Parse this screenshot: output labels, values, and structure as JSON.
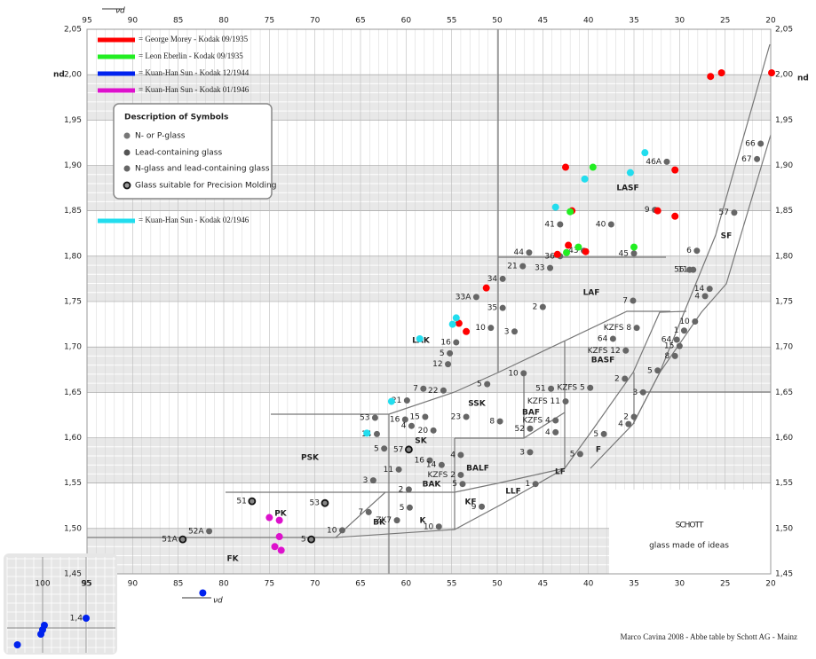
{
  "chart_data": {
    "type": "scatter",
    "x_label": "νd",
    "y_label": "nd",
    "xlim": [
      95,
      20
    ],
    "ylim": [
      1.45,
      2.05
    ],
    "xticks": [
      95,
      90,
      85,
      80,
      75,
      70,
      65,
      60,
      55,
      50,
      45,
      40,
      35,
      30,
      25,
      20
    ],
    "yticks": [
      {
        "value": 1.45,
        "label": "1,45"
      },
      {
        "value": 1.5,
        "label": "1,50"
      },
      {
        "value": 1.55,
        "label": "1,55"
      },
      {
        "value": 1.6,
        "label": "1,60"
      },
      {
        "value": 1.65,
        "label": "1,65"
      },
      {
        "value": 1.7,
        "label": "1,70"
      },
      {
        "value": 1.75,
        "label": "1,75"
      },
      {
        "value": 1.8,
        "label": "1,80"
      },
      {
        "value": 1.85,
        "label": "1,85"
      },
      {
        "value": 1.9,
        "label": "1,90"
      },
      {
        "value": 1.95,
        "label": "1,95"
      },
      {
        "value": 2.0,
        "label": "2,00"
      },
      {
        "value": 2.05,
        "label": "2,05"
      }
    ],
    "grid": true,
    "series": [
      {
        "name": "= George Morey - Kodak 09/1935",
        "color": "#ff0000",
        "x": [
          26.6,
          25.4,
          19.9,
          30.5,
          32.4,
          30.5,
          42.5,
          41.8,
          42.2,
          43.4,
          40.3,
          51.2,
          54.2,
          53.4
        ],
        "values": [
          1.998,
          2.002,
          2.002,
          1.895,
          1.85,
          1.844,
          1.898,
          1.85,
          1.812,
          1.802,
          1.805,
          1.765,
          1.726,
          1.717
        ]
      },
      {
        "name": "= Leon Eberlin - Kodak 09/1935",
        "color": "#22ee22",
        "x": [
          39.5,
          42.0,
          41.1,
          35.0,
          42.4
        ],
        "values": [
          1.898,
          1.849,
          1.81,
          1.81,
          1.804
        ]
      },
      {
        "name": "= Kuan-Han Sun - Kodak 12/1944",
        "color": "#0022ee",
        "x": [
          82.3
        ],
        "values": [
          1.429
        ]
      },
      {
        "name": "= Kuan-Han Sun - Kodak 01/1946",
        "color": "#dd11cc",
        "x": [
          75.0,
          73.9,
          73.9,
          74.4,
          73.7
        ],
        "values": [
          1.512,
          1.509,
          1.491,
          1.48,
          1.476
        ]
      },
      {
        "name": "= Kuan-Han Sun - Kodak 02/1946",
        "color": "#22ddee",
        "x": [
          33.8,
          35.4,
          40.4,
          43.6,
          54.5,
          54.9,
          58.5,
          61.6,
          64.3
        ],
        "values": [
          1.914,
          1.892,
          1.885,
          1.854,
          1.732,
          1.725,
          1.709,
          1.64,
          1.605
        ]
      }
    ],
    "glasses": {
      "color": "#666666",
      "labels": [
        "66",
        "67",
        "46A",
        "41",
        "40",
        "9",
        "57",
        "44",
        "36",
        "43",
        "45",
        "6",
        "21",
        "33",
        "56",
        "11",
        "34",
        "33A",
        "35",
        "2",
        "7",
        "14",
        "4",
        "10",
        "3",
        "10",
        "1",
        "KZFS 8",
        "64",
        "64",
        "15",
        "KZFS 12",
        "8",
        "5",
        "16",
        "5",
        "12",
        "10",
        "2",
        "3",
        "7",
        "22",
        "5",
        "51",
        "KZFS 5",
        "21",
        "KZFS 11",
        "53",
        "16",
        "15",
        "23",
        "8",
        "KZFS 4",
        "2",
        "4",
        "4",
        "20",
        "52",
        "4",
        "14",
        "5",
        "5",
        "3",
        "11",
        "16",
        "14",
        "4",
        "5",
        "KZFS 2",
        "5",
        "3",
        "2",
        "1",
        "9",
        "7",
        "5",
        "ZK7",
        "10",
        "10",
        "52A"
      ],
      "x": [
        21.1,
        21.5,
        31.4,
        43.1,
        37.5,
        32.7,
        24.0,
        46.5,
        43.1,
        40.5,
        35.0,
        28.1,
        47.2,
        44.2,
        28.9,
        28.5,
        49.4,
        52.3,
        49.4,
        45.0,
        35.1,
        26.7,
        27.2,
        50.7,
        48.1,
        28.3,
        29.5,
        34.7,
        37.3,
        30.3,
        30.0,
        35.9,
        30.5,
        32.4,
        54.5,
        55.2,
        55.4,
        47.1,
        36.0,
        34.0,
        58.1,
        55.9,
        51.1,
        44.1,
        39.8,
        59.9,
        42.5,
        63.4,
        60.1,
        57.9,
        53.4,
        49.7,
        43.6,
        35.0,
        35.6,
        59.4,
        57.0,
        46.4,
        43.6,
        63.2,
        38.3,
        62.4,
        46.4,
        60.8,
        57.4,
        56.1,
        54.0,
        40.9,
        54.0,
        53.8,
        63.6,
        59.7,
        45.8,
        51.7,
        64.1,
        59.6,
        61.0,
        67.0,
        56.4,
        81.6
      ],
      "values": [
        1.924,
        1.907,
        1.904,
        1.835,
        1.835,
        1.851,
        1.848,
        1.804,
        1.8,
        1.806,
        1.803,
        1.806,
        1.789,
        1.787,
        1.785,
        1.785,
        1.775,
        1.755,
        1.743,
        1.744,
        1.751,
        1.764,
        1.756,
        1.721,
        1.717,
        1.728,
        1.718,
        1.721,
        1.709,
        1.708,
        1.701,
        1.696,
        1.69,
        1.674,
        1.705,
        1.693,
        1.681,
        1.671,
        1.665,
        1.65,
        1.654,
        1.652,
        1.659,
        1.654,
        1.655,
        1.641,
        1.64,
        1.622,
        1.62,
        1.623,
        1.623,
        1.618,
        1.619,
        1.623,
        1.615,
        1.613,
        1.608,
        1.61,
        1.606,
        1.604,
        1.604,
        1.588,
        1.584,
        1.565,
        1.575,
        1.57,
        1.581,
        1.582,
        1.559,
        1.549,
        1.553,
        1.543,
        1.549,
        1.524,
        1.518,
        1.523,
        1.509,
        1.498,
        1.502,
        1.497
      ]
    },
    "molding_glasses": {
      "color": "#888888",
      "labels": [
        "57",
        "51",
        "53",
        "51A",
        "5"
      ],
      "x": [
        59.7,
        76.9,
        68.9,
        84.5,
        70.4
      ],
      "values": [
        1.587,
        1.53,
        1.528,
        1.488,
        1.488
      ]
    },
    "regions": [
      "LASF",
      "LAF",
      "SF",
      "BASF",
      "LAK",
      "SSK",
      "BAF",
      "PSK",
      "SK",
      "BALF",
      "BAK",
      "LLF",
      "LF",
      "F",
      "KF",
      "PK",
      "K",
      "BK",
      "FK"
    ],
    "symbols": {
      "title": "Description of Symbols",
      "items": [
        "N- or P-glass",
        "Lead-containing glass",
        "N-glass and lead-containing glass",
        "Glass suitable for Precision Molding"
      ]
    },
    "inset": {
      "xticks": [
        100,
        95
      ],
      "yticks": [
        {
          "value": 1.4,
          "label": "1,4"
        }
      ],
      "x": [
        95.0,
        99.8,
        100.0,
        100.2,
        102.9
      ],
      "values": [
        1.4,
        1.392,
        1.387,
        1.382,
        1.37
      ]
    },
    "logo": {
      "name": "SCHOTT",
      "slogan": "glass made of ideas"
    },
    "credit": "Marco Cavina 2008 - Abbe table by Schott AG - Mainz"
  }
}
